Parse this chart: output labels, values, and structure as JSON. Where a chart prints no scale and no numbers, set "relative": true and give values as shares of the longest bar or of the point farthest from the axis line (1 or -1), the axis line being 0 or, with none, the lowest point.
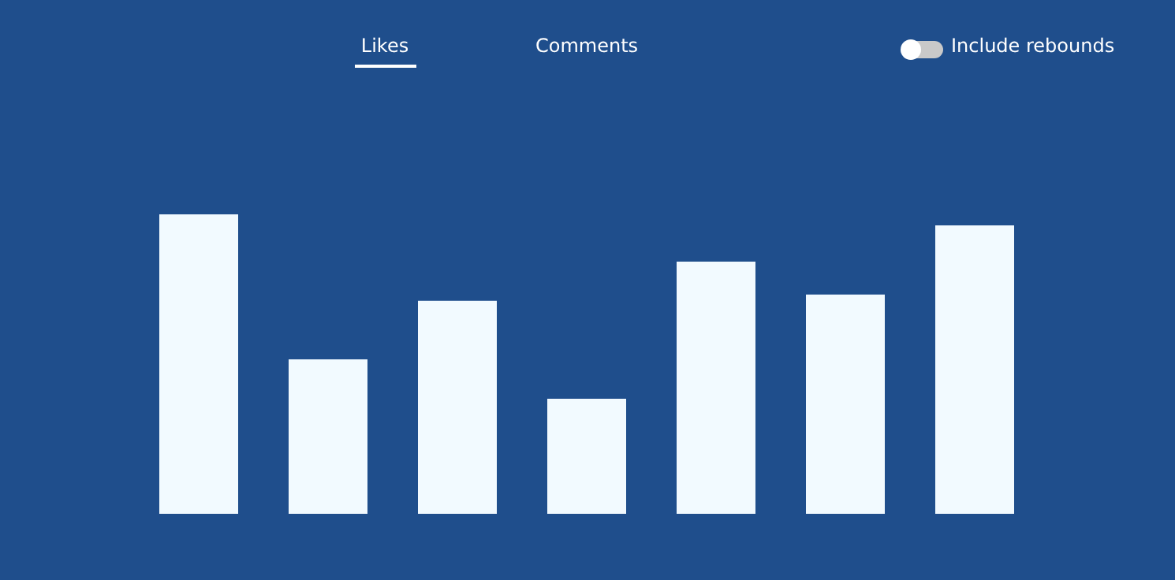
{
  "chart_data": {
    "type": "bar",
    "relative": true,
    "categories": [
      null,
      null,
      null,
      null,
      null,
      null,
      null
    ],
    "values": [
      1,
      0.516,
      0.711,
      0.384,
      0.842,
      0.732,
      0.963
    ],
    "color": "#f2faff",
    "annotations": [
      "Likes",
      "Comments",
      "Include rebounds"
    ]
  }
}
